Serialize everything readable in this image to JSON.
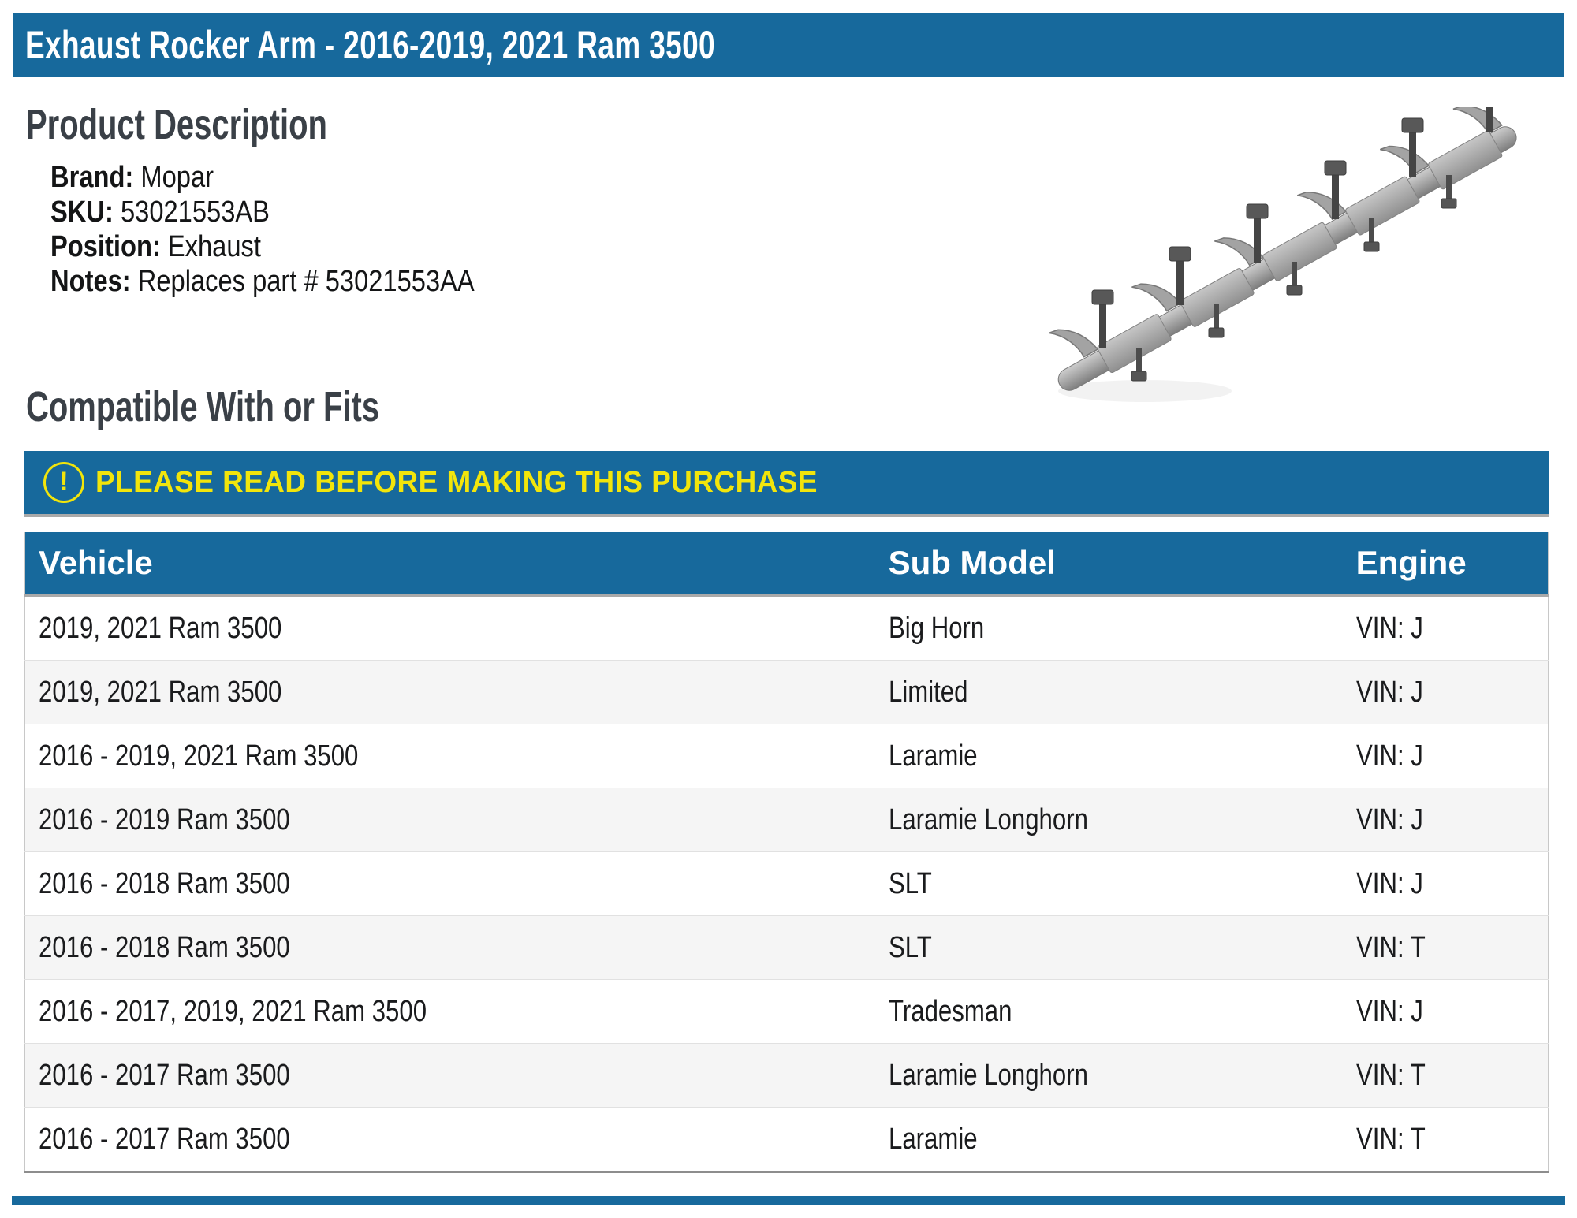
{
  "title_bar": {
    "text": "Exhaust Rocker Arm - 2016-2019, 2021 Ram 3500"
  },
  "product_description": {
    "heading": "Product Description",
    "fields": [
      {
        "label": "Brand:",
        "value": "Mopar"
      },
      {
        "label": "SKU:",
        "value": "53021553AB"
      },
      {
        "label": "Position:",
        "value": "Exhaust"
      },
      {
        "label": "Notes:",
        "value": "Replaces part # 53021553AA"
      }
    ],
    "image": "rocker-arm-shaft-assembly-photo"
  },
  "compatibility": {
    "heading": "Compatible With or Fits",
    "warning_icon": "exclamation-circle-icon",
    "warning_icon_glyph": "!",
    "warning_text": "PLEASE READ BEFORE MAKING THIS PURCHASE",
    "table": {
      "headers": [
        "Vehicle",
        "Sub Model",
        "Engine"
      ],
      "rows": [
        [
          "2019, 2021 Ram 3500",
          "Big Horn",
          "VIN: J"
        ],
        [
          "2019, 2021 Ram 3500",
          "Limited",
          "VIN: J"
        ],
        [
          "2016 - 2019, 2021 Ram 3500",
          "Laramie",
          "VIN: J"
        ],
        [
          "2016 - 2019 Ram 3500",
          "Laramie Longhorn",
          "VIN: J"
        ],
        [
          "2016 - 2018 Ram 3500",
          "SLT",
          "VIN: J"
        ],
        [
          "2016 - 2018 Ram 3500",
          "SLT",
          "VIN: T"
        ],
        [
          "2016 - 2017, 2019, 2021 Ram 3500",
          "Tradesman",
          "VIN: J"
        ],
        [
          "2016 - 2017 Ram 3500",
          "Laramie Longhorn",
          "VIN: T"
        ],
        [
          "2016 - 2017 Ram 3500",
          "Laramie",
          "VIN: T"
        ]
      ]
    }
  },
  "colors": {
    "primary_blue": "#17699c",
    "warning_yellow": "#f2e50b",
    "heading_gray": "#3a4047",
    "row_alt_gray": "#f5f5f5"
  }
}
